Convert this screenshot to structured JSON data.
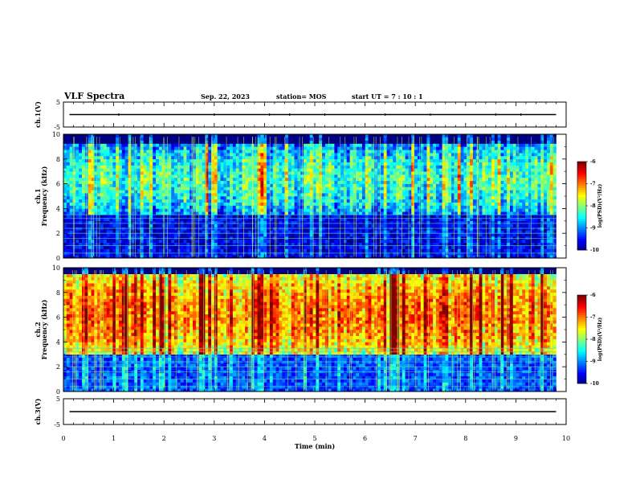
{
  "header": {
    "title": "VLF Spectra",
    "date": "Sep. 22, 2023",
    "station": "station= MOS",
    "start": "start  UT  =   7 : 10 : 1"
  },
  "chart_data": [
    {
      "id": "ch1-waveform",
      "type": "line",
      "ylabel": "ch.1(V)",
      "ylim": [
        -5,
        5
      ],
      "yticks": [
        "5",
        "-5"
      ],
      "xlim": [
        0,
        10
      ],
      "trace": {
        "level": 0,
        "end_min": 9.8
      }
    },
    {
      "id": "ch1-spectrogram",
      "type": "heatmap",
      "ylabel_line1": "ch.1",
      "ylabel_line2": "Frequency (kHz)",
      "ylim": [
        0,
        10
      ],
      "yticks": [
        "0",
        "2",
        "4",
        "6",
        "8",
        "10"
      ],
      "xlim": [
        0,
        10
      ],
      "data_end_min": 9.8,
      "colorbar": {
        "label": "log(PSD)(V²/Hz)",
        "range": [
          -10,
          -6
        ],
        "ticks": [
          "-6",
          "-7",
          "-8",
          "-9",
          "-10"
        ]
      },
      "profile": {
        "floor_khz": 3.6,
        "floor_level": -9.6,
        "high_level": -8.3,
        "band_top_khz": 9.2
      }
    },
    {
      "id": "ch2-spectrogram",
      "type": "heatmap",
      "ylabel_line1": "ch.2",
      "ylabel_line2": "Frequency (kHz)",
      "ylim": [
        0,
        10
      ],
      "yticks": [
        "0",
        "2",
        "4",
        "6",
        "8",
        "10"
      ],
      "xlim": [
        0,
        10
      ],
      "data_end_min": 9.8,
      "colorbar": {
        "label": "log(PSD)(V²/Hz)",
        "range": [
          -10,
          -6
        ],
        "ticks": [
          "-6",
          "-7",
          "-8",
          "-9",
          "-10"
        ]
      },
      "profile": {
        "floor_khz": 3.0,
        "floor_level": -9.2,
        "high_level": -7.0,
        "band_top_khz": 9.6
      }
    },
    {
      "id": "ch3-waveform",
      "type": "line",
      "ylabel": "ch.3(V)",
      "ylim": [
        -5,
        5
      ],
      "yticks": [
        "5",
        "-5"
      ],
      "xlim": [
        0,
        10
      ],
      "xlabel": "Time  (min)",
      "xticks": [
        "0",
        "1",
        "2",
        "3",
        "4",
        "5",
        "6",
        "7",
        "8",
        "9",
        "10"
      ],
      "trace": {
        "level": 0,
        "end_min": 9.8
      }
    }
  ]
}
